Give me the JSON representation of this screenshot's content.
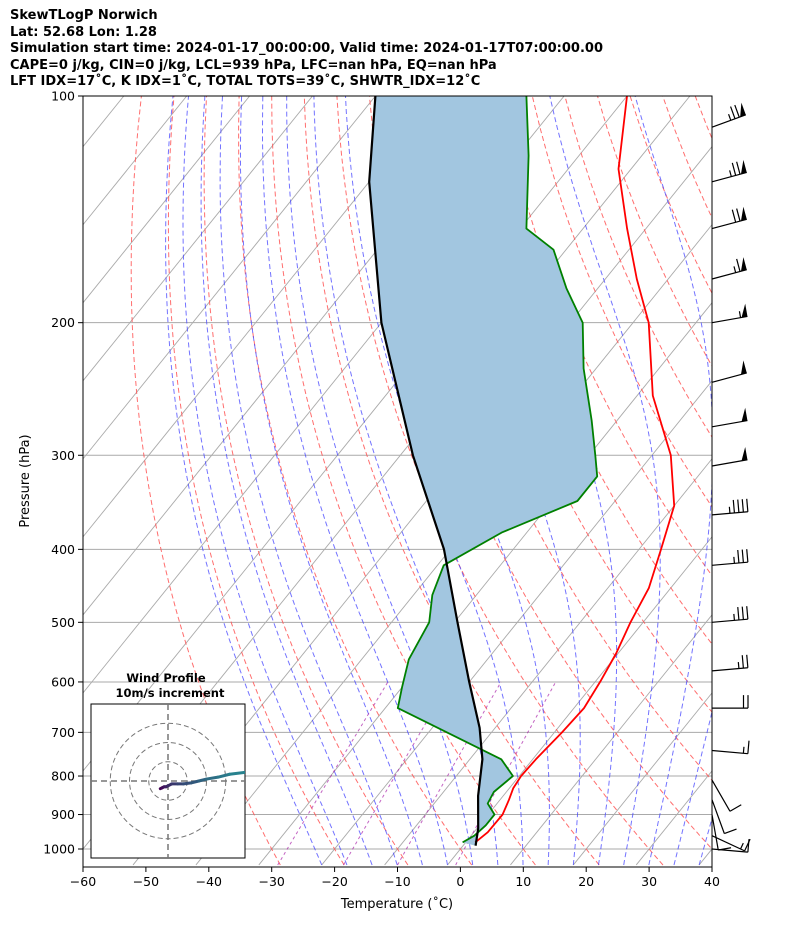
{
  "header": {
    "line1": "SkewTLogP Norwich",
    "line2": "Lat: 52.68   Lon: 1.28",
    "line3": "Simulation start time: 2024-01-17_00:00:00, Valid time: 2024-01-17T07:00:00.00",
    "line4": "CAPE=0 j/kg, CIN=0 j/kg, LCL=939 hPa, LFC=nan hPa, EQ=nan hPa",
    "line5": "LFT IDX=17˚C, K IDX=1˚C, TOTAL TOTS=39˚C, SHWTR_IDX=12˚C"
  },
  "chart_data": {
    "type": "line",
    "title": "SkewTLogP Norwich",
    "xlabel": "Temperature (˚C)",
    "ylabel": "Pressure (hPa)",
    "xlim": [
      -60,
      40
    ],
    "ylim": [
      1050,
      100
    ],
    "x_ticks": [
      "−60",
      "−50",
      "−40",
      "−30",
      "−20",
      "−10",
      "0",
      "10",
      "20",
      "30",
      "40"
    ],
    "y_ticks": [
      "100",
      "200",
      "300",
      "400",
      "500",
      "600",
      "700",
      "800",
      "900",
      "1000"
    ],
    "colors": {
      "temperature": "#ff0000",
      "dewpoint": "#008000",
      "parcel": "#000000",
      "shade": "#a2c6e0",
      "dry_adiabat": "#ff5555",
      "moist_adiabat": "#4444ff",
      "isotherm": "#aaaaaa",
      "mixing_ratio": "#aa22aa"
    },
    "series": [
      {
        "name": "Temperature",
        "points": [
          [
            1.5,
            980
          ],
          [
            2.2,
            950
          ],
          [
            2.3,
            900
          ],
          [
            1.4,
            860
          ],
          [
            0.6,
            830
          ],
          [
            0.3,
            800
          ],
          [
            0.5,
            760
          ],
          [
            1.2,
            700
          ],
          [
            1.6,
            650
          ],
          [
            0.8,
            600
          ],
          [
            -0.3,
            550
          ],
          [
            -2.0,
            500
          ],
          [
            -3.5,
            450
          ],
          [
            -6.5,
            400
          ],
          [
            -10,
            350
          ],
          [
            -17,
            300
          ],
          [
            -27.5,
            250
          ],
          [
            -37.5,
            200
          ],
          [
            -45,
            175
          ],
          [
            -53,
            150
          ],
          [
            -62,
            125
          ],
          [
            -70,
            100
          ]
        ]
      },
      {
        "name": "Dewpoint",
        "points": [
          [
            -0.5,
            980
          ],
          [
            0.5,
            960
          ],
          [
            1.0,
            930
          ],
          [
            1.0,
            900
          ],
          [
            -1.5,
            870
          ],
          [
            -2.0,
            840
          ],
          [
            -1.0,
            800
          ],
          [
            -5.0,
            760
          ],
          [
            -28,
            650
          ],
          [
            -30,
            610
          ],
          [
            -32.5,
            560
          ],
          [
            -34.0,
            500
          ],
          [
            -37.0,
            460
          ],
          [
            -39.0,
            420
          ],
          [
            -34.0,
            380
          ],
          [
            -26.0,
            345
          ],
          [
            -26.0,
            320
          ],
          [
            -29.0,
            300
          ],
          [
            -34.0,
            270
          ],
          [
            -42.0,
            230
          ],
          [
            -48.0,
            200
          ],
          [
            -55.0,
            180
          ],
          [
            -62.0,
            160
          ],
          [
            -69.0,
            150
          ],
          [
            -78.0,
            120
          ],
          [
            -86.0,
            100
          ]
        ]
      },
      {
        "name": "Parcel",
        "points": [
          [
            2.0,
            990
          ],
          [
            0.2,
            939
          ],
          [
            -4.0,
            850
          ],
          [
            -8.0,
            760
          ],
          [
            -12.5,
            690
          ],
          [
            -20.0,
            600
          ],
          [
            -29.5,
            500
          ],
          [
            -41.0,
            400
          ],
          [
            -58.0,
            300
          ],
          [
            -80.0,
            200
          ],
          [
            -100,
            130
          ],
          [
            -110,
            100
          ]
        ]
      }
    ],
    "wind_barbs": [
      {
        "p": 110,
        "speed_kt": 75,
        "dir_deg": 250
      },
      {
        "p": 130,
        "speed_kt": 75,
        "dir_deg": 255
      },
      {
        "p": 150,
        "speed_kt": 70,
        "dir_deg": 255
      },
      {
        "p": 175,
        "speed_kt": 65,
        "dir_deg": 255
      },
      {
        "p": 200,
        "speed_kt": 55,
        "dir_deg": 260
      },
      {
        "p": 240,
        "speed_kt": 50,
        "dir_deg": 255
      },
      {
        "p": 275,
        "speed_kt": 50,
        "dir_deg": 260
      },
      {
        "p": 310,
        "speed_kt": 50,
        "dir_deg": 260
      },
      {
        "p": 360,
        "speed_kt": 45,
        "dir_deg": 265
      },
      {
        "p": 420,
        "speed_kt": 35,
        "dir_deg": 265
      },
      {
        "p": 500,
        "speed_kt": 35,
        "dir_deg": 265
      },
      {
        "p": 580,
        "speed_kt": 25,
        "dir_deg": 265
      },
      {
        "p": 650,
        "speed_kt": 20,
        "dir_deg": 270
      },
      {
        "p": 740,
        "speed_kt": 15,
        "dir_deg": 275
      },
      {
        "p": 810,
        "speed_kt": 10,
        "dir_deg": 330
      },
      {
        "p": 860,
        "speed_kt": 10,
        "dir_deg": 340
      },
      {
        "p": 900,
        "speed_kt": 10,
        "dir_deg": 350
      },
      {
        "p": 960,
        "speed_kt": 15,
        "dir_deg": 295
      },
      {
        "p": 1000,
        "speed_kt": 10,
        "dir_deg": 275
      }
    ],
    "hodograph": {
      "title_line1": "Wind Profile",
      "title_line2": "10m/s increment",
      "rings_ms": [
        10,
        20,
        30
      ],
      "range_ms": 40,
      "points": [
        [
          -4,
          -4
        ],
        [
          -3,
          -3.5
        ],
        [
          -2,
          -3
        ],
        [
          -1,
          -3
        ],
        [
          0,
          -2.5
        ],
        [
          2,
          -1.5
        ],
        [
          5,
          -1.5
        ],
        [
          8,
          -1.5
        ],
        [
          12,
          -1
        ],
        [
          16,
          0
        ],
        [
          20,
          1
        ],
        [
          26,
          2
        ],
        [
          32,
          3.5
        ],
        [
          40,
          4.5
        ]
      ]
    }
  }
}
